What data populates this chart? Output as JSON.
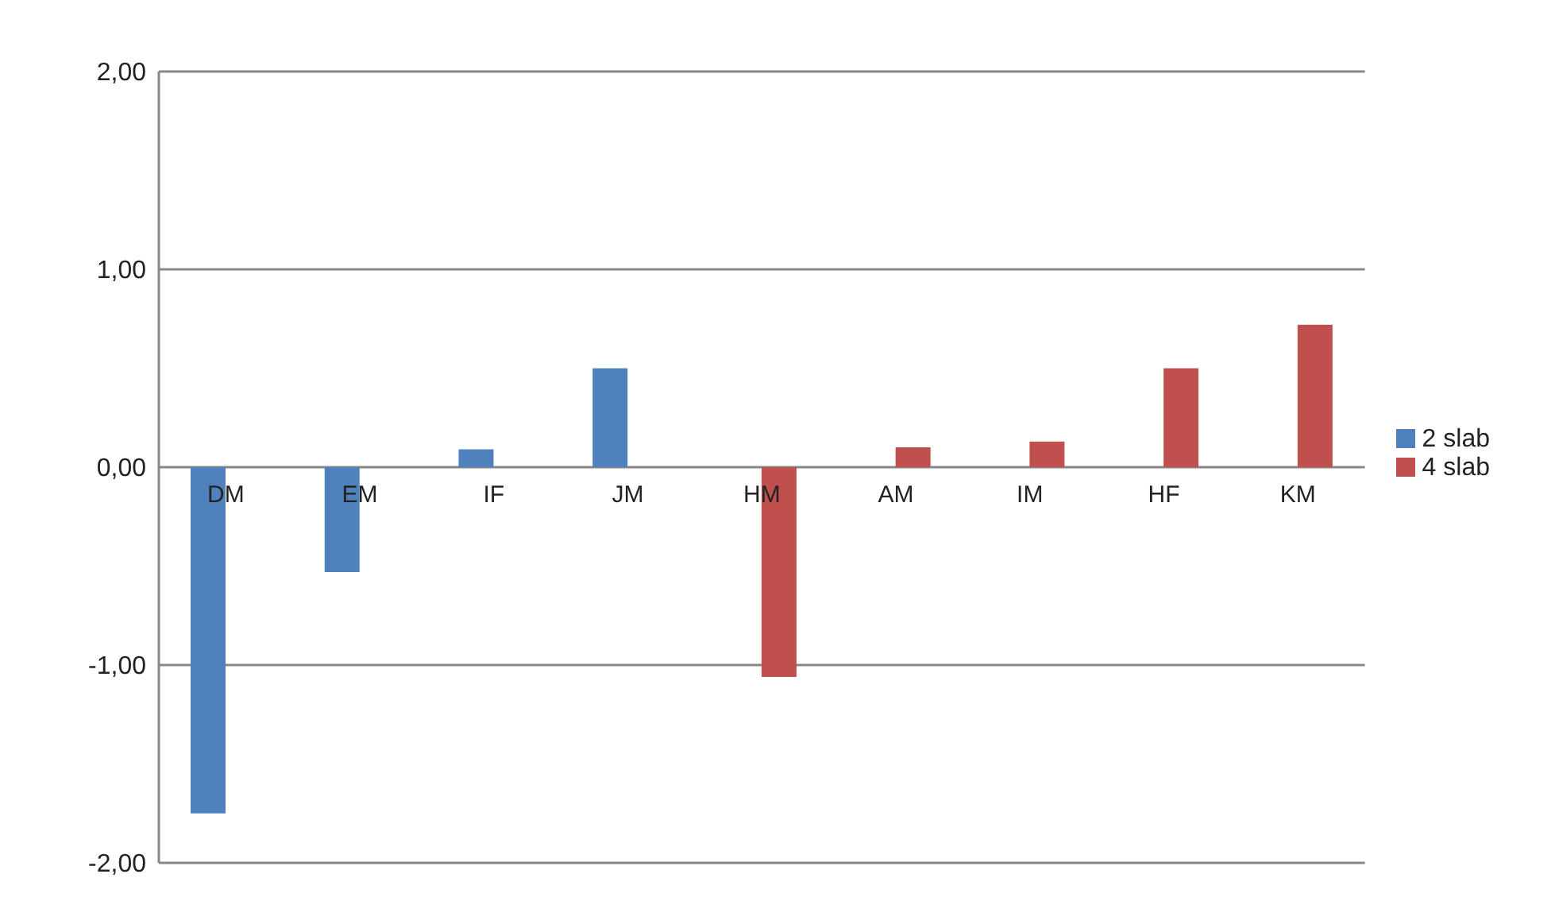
{
  "chart_data": {
    "type": "bar",
    "categories": [
      "DM",
      "EM",
      "IF",
      "JM",
      "HM",
      "AM",
      "IM",
      "HF",
      "KM"
    ],
    "series": [
      {
        "name": "2 slab",
        "color": "#4f81bd",
        "values": [
          -1.75,
          -0.53,
          0.09,
          0.5,
          null,
          null,
          null,
          null,
          null
        ]
      },
      {
        "name": "4 slab",
        "color": "#c0504d",
        "values": [
          null,
          null,
          null,
          null,
          -1.06,
          0.1,
          0.13,
          0.5,
          0.72
        ]
      }
    ],
    "ylim": [
      -2,
      2
    ],
    "yticks": [
      {
        "value": -2,
        "label": "-2,00"
      },
      {
        "value": -1,
        "label": "-1,00"
      },
      {
        "value": 0,
        "label": "0,00"
      },
      {
        "value": 1,
        "label": "1,00"
      },
      {
        "value": 2,
        "label": "2,00"
      }
    ],
    "grid": "y",
    "legend": "right"
  }
}
